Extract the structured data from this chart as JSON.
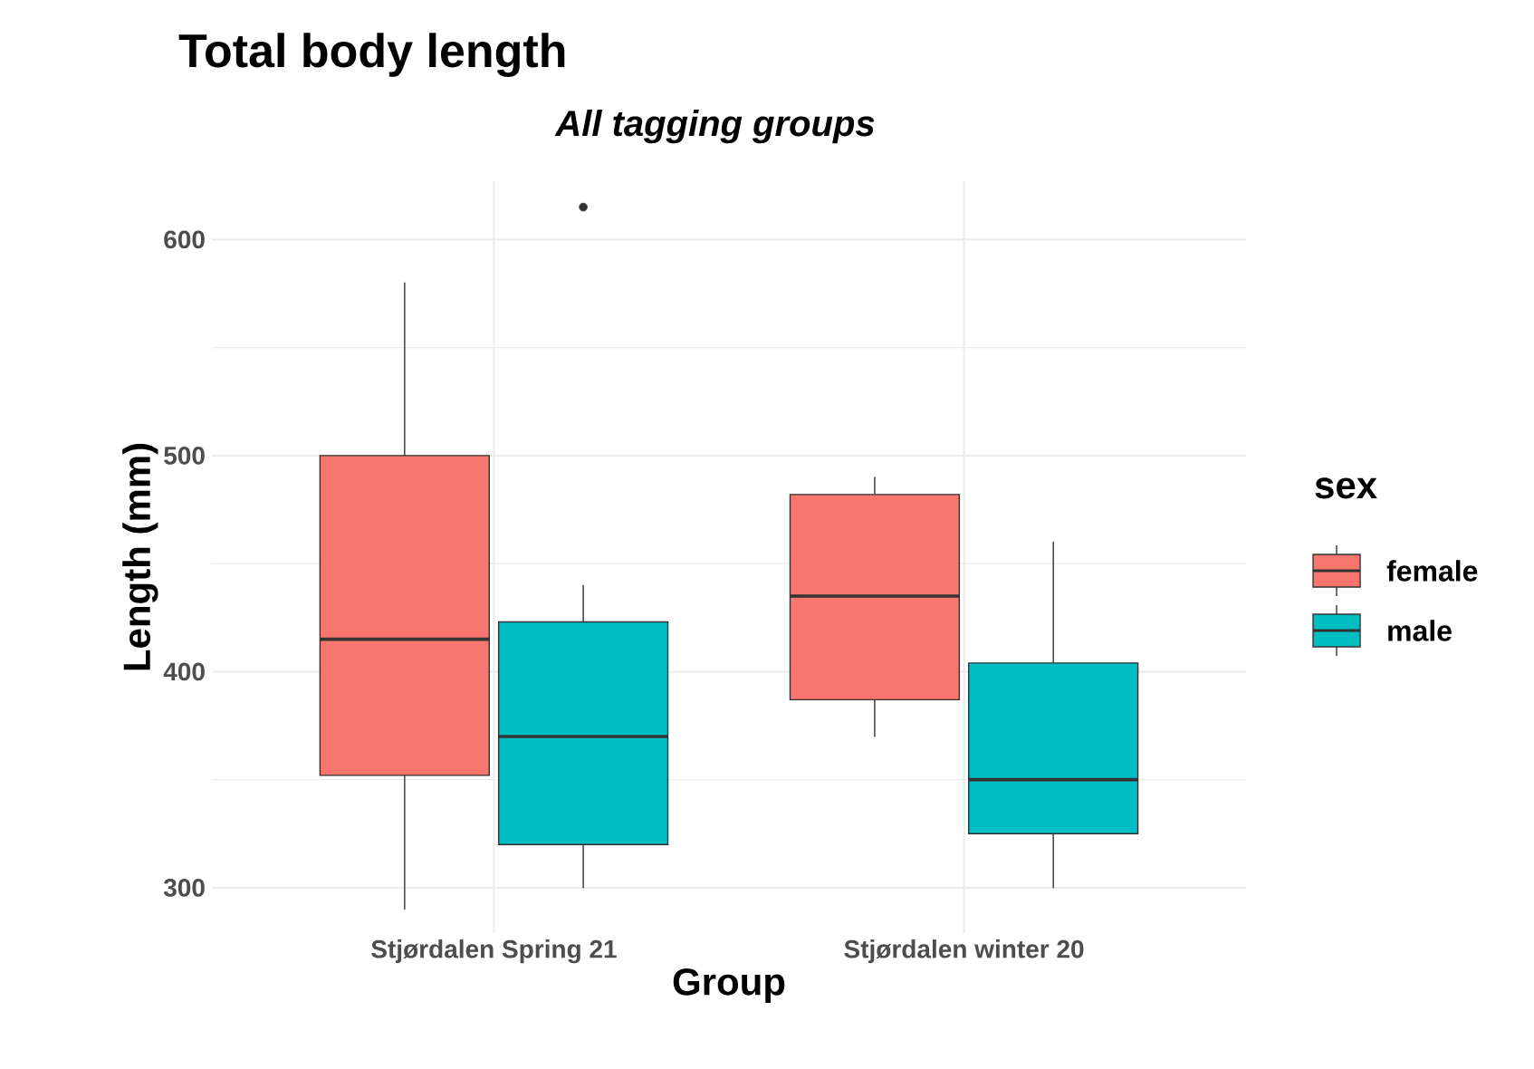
{
  "chart_data": {
    "type": "box",
    "title": "Total body length",
    "subtitle": "All tagging groups",
    "xlabel": "Group",
    "ylabel": "Length (mm)",
    "legend_title": "sex",
    "categories": [
      "Stjørdalen Spring 21",
      "Stjørdalen winter 20"
    ],
    "series": [
      {
        "name": "female",
        "color": "#f8766d",
        "boxes": [
          {
            "low": 290,
            "q1": 352,
            "median": 415,
            "q3": 500,
            "high": 580
          },
          {
            "low": 370,
            "q1": 387,
            "median": 435,
            "q3": 482,
            "high": 490
          }
        ]
      },
      {
        "name": "male",
        "color": "#00bfc4",
        "boxes": [
          {
            "low": 300,
            "q1": 320,
            "median": 370,
            "q3": 423,
            "high": 440,
            "outliers": [
              615
            ]
          },
          {
            "low": 300,
            "q1": 325,
            "median": 350,
            "q3": 404,
            "high": 460
          }
        ]
      }
    ],
    "ylim": [
      279,
      627
    ],
    "yticks": [
      300,
      400,
      500,
      600
    ],
    "grid": true,
    "legend": "right"
  }
}
